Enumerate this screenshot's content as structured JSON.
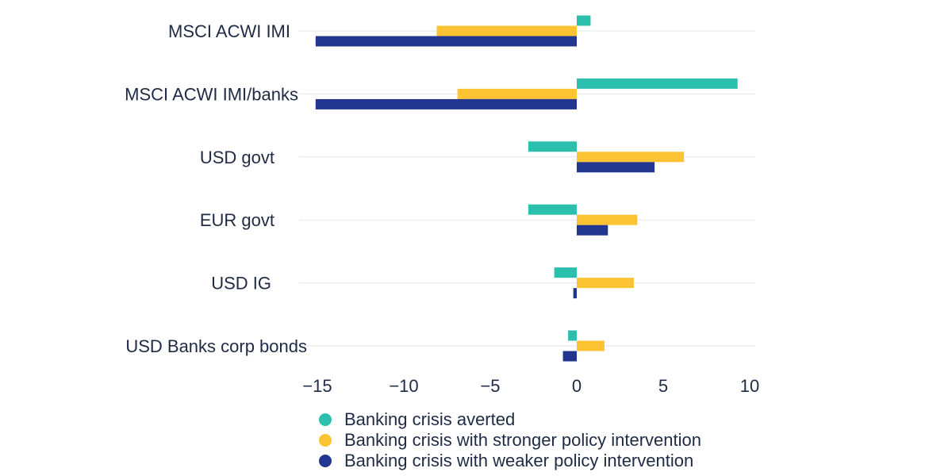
{
  "chart_data": {
    "type": "bar",
    "orientation": "horizontal",
    "categories": [
      "MSCI ACWI IMI",
      "MSCI ACWI IMI/banks",
      "USD govt",
      "EUR govt",
      "USD IG",
      "USD Banks corp bonds"
    ],
    "series": [
      {
        "name": "Banking crisis averted",
        "color": "#2bbfae",
        "values": [
          0.8,
          9.3,
          -2.8,
          -2.8,
          -1.3,
          -0.5
        ]
      },
      {
        "name": "Banking crisis with stronger policy intervention",
        "color": "#fcc433",
        "values": [
          -8.1,
          -6.9,
          6.2,
          3.5,
          3.3,
          1.6
        ]
      },
      {
        "name": "Banking crisis with weaker policy intervention",
        "color": "#23368f",
        "values": [
          -15.1,
          -15.1,
          4.5,
          1.8,
          -0.2,
          -0.8
        ]
      }
    ],
    "xlim": [
      -15,
      10
    ],
    "xticks": [
      "−15",
      "−10",
      "−5",
      "0",
      "5",
      "10"
    ],
    "xtick_values": [
      -15,
      -10,
      -5,
      0,
      5,
      10
    ],
    "grid": "horizontal",
    "legend_position": "bottom",
    "title": "",
    "xlabel": "",
    "ylabel": ""
  }
}
